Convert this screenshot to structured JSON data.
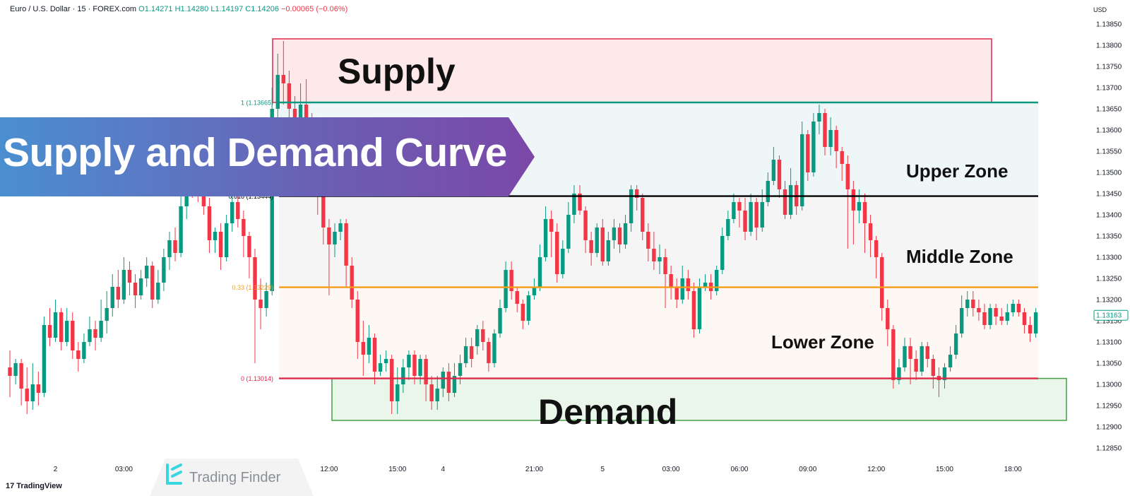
{
  "header": {
    "symbol": "Euro / U.S. Dollar · 15 · FOREX.com",
    "open": "O1.14271",
    "high": "H1.14280",
    "low": "L1.14197",
    "close": "C1.14206",
    "change": "−0.00065 (−0.06%)"
  },
  "banner": {
    "title": "Supply and Demand Curve"
  },
  "labels": {
    "supply": "Supply",
    "demand": "Demand",
    "upper": "Upper Zone",
    "middle": "Middle Zone",
    "lower": "Lower Zone"
  },
  "watermark": {
    "text": "Trading Finder"
  },
  "branding": {
    "tradingview": "TradingView",
    "tv_mark": "17"
  },
  "colors": {
    "bull": "#089981",
    "bear": "#f23645",
    "fib1": "#089981",
    "fib0618": "#000000",
    "fib033": "#f59c1a",
    "fib0": "#e0284a",
    "supply_border": "#e0284a",
    "supply_fill": "#fde8ea",
    "demand_border": "#43a047",
    "demand_fill": "#eaf6ea",
    "upper_fill": "#eef6f8",
    "middle_fill": "#f5f5f6",
    "lower_fill": "#fdf8f4"
  },
  "chart_data": {
    "type": "candlestick",
    "currency": "USD",
    "last_price": "1.13163",
    "ylim": [
      1.1282,
      1.1387
    ],
    "y_ticks": [
      "1.13850",
      "1.13800",
      "1.13750",
      "1.13700",
      "1.13650",
      "1.13600",
      "1.13550",
      "1.13500",
      "1.13450",
      "1.13400",
      "1.13350",
      "1.13300",
      "1.13250",
      "1.13200",
      "1.13150",
      "1.13100",
      "1.13050",
      "1.13000",
      "1.12950",
      "1.12900",
      "1.12850"
    ],
    "x_ticks": [
      {
        "label": "2",
        "index": 8
      },
      {
        "label": "03:00",
        "index": 20
      },
      {
        "label": "12:00",
        "index": 56
      },
      {
        "label": "15:00",
        "index": 68
      },
      {
        "label": "4",
        "index": 76
      },
      {
        "label": "21:00",
        "index": 92
      },
      {
        "label": "5",
        "index": 104
      },
      {
        "label": "03:00",
        "index": 116
      },
      {
        "label": "06:00",
        "index": 128
      },
      {
        "label": "09:00",
        "index": 140
      },
      {
        "label": "12:00",
        "index": 152
      },
      {
        "label": "15:00",
        "index": 164
      },
      {
        "label": "18:00",
        "index": 176
      }
    ],
    "fib_levels": [
      {
        "ratio": "1",
        "price": 1.13665,
        "label": "1 (1.13665)"
      },
      {
        "ratio": "0.618",
        "price": 1.13444,
        "label": "0.618 (1.13444)"
      },
      {
        "ratio": "0.33",
        "price": 1.13229,
        "label": "0.33 (1.13229)"
      },
      {
        "ratio": "0",
        "price": 1.13014,
        "label": "0 (1.13014)"
      }
    ],
    "zones": {
      "supply": {
        "top": 1.13815,
        "bottom": 1.13665,
        "from_index": 46,
        "to_index": 167
      },
      "demand": {
        "top": 1.13014,
        "bottom": 1.12915,
        "from_index": 56,
        "to_index": 180
      }
    },
    "candles": [
      [
        1.1304,
        1.1302,
        1.1308,
        1.1297
      ],
      [
        1.1302,
        1.1305,
        1.1306,
        1.13
      ],
      [
        1.1305,
        1.1299,
        1.1306,
        1.1295
      ],
      [
        1.1299,
        1.1296,
        1.1304,
        1.1293
      ],
      [
        1.1296,
        1.13,
        1.1305,
        1.1294
      ],
      [
        1.13,
        1.1298,
        1.1303,
        1.1295
      ],
      [
        1.1298,
        1.1314,
        1.1316,
        1.1297
      ],
      [
        1.1314,
        1.1311,
        1.1318,
        1.1309
      ],
      [
        1.1311,
        1.1317,
        1.132,
        1.131
      ],
      [
        1.1317,
        1.131,
        1.1318,
        1.1308
      ],
      [
        1.131,
        1.1315,
        1.1318,
        1.1309
      ],
      [
        1.1315,
        1.1308,
        1.1317,
        1.1306
      ],
      [
        1.1308,
        1.1306,
        1.131,
        1.1303
      ],
      [
        1.1306,
        1.131,
        1.1312,
        1.1305
      ],
      [
        1.131,
        1.1313,
        1.1316,
        1.1309
      ],
      [
        1.1313,
        1.1311,
        1.1315,
        1.1308
      ],
      [
        1.1311,
        1.1315,
        1.132,
        1.131
      ],
      [
        1.1315,
        1.1318,
        1.1322,
        1.1312
      ],
      [
        1.1318,
        1.1323,
        1.1326,
        1.1316
      ],
      [
        1.1323,
        1.132,
        1.1327,
        1.1318
      ],
      [
        1.132,
        1.1327,
        1.133,
        1.1319
      ],
      [
        1.1327,
        1.1324,
        1.1329,
        1.1321
      ],
      [
        1.1324,
        1.1321,
        1.1326,
        1.1318
      ],
      [
        1.1321,
        1.1325,
        1.1327,
        1.132
      ],
      [
        1.1325,
        1.1328,
        1.133,
        1.1323
      ],
      [
        1.1328,
        1.132,
        1.1329,
        1.1318
      ],
      [
        1.132,
        1.1324,
        1.1327,
        1.1319
      ],
      [
        1.1324,
        1.133,
        1.1332,
        1.1322
      ],
      [
        1.133,
        1.1334,
        1.1336,
        1.1327
      ],
      [
        1.1334,
        1.1331,
        1.1337,
        1.1329
      ],
      [
        1.1331,
        1.1342,
        1.1345,
        1.133
      ],
      [
        1.1342,
        1.135,
        1.1353,
        1.1339
      ],
      [
        1.135,
        1.1348,
        1.1352,
        1.1344
      ],
      [
        1.1348,
        1.1346,
        1.135,
        1.1343
      ],
      [
        1.1346,
        1.1342,
        1.1348,
        1.134
      ],
      [
        1.1342,
        1.1334,
        1.1344,
        1.1331
      ],
      [
        1.1334,
        1.1336,
        1.1337,
        1.1331
      ],
      [
        1.1336,
        1.133,
        1.1338,
        1.1327
      ],
      [
        1.133,
        1.1338,
        1.134,
        1.1329
      ],
      [
        1.1338,
        1.1343,
        1.1346,
        1.1336
      ],
      [
        1.1343,
        1.1339,
        1.1345,
        1.1337
      ],
      [
        1.1339,
        1.1335,
        1.1341,
        1.133
      ],
      [
        1.1335,
        1.133,
        1.1336,
        1.1325
      ],
      [
        1.133,
        1.132,
        1.1332,
        1.1305
      ],
      [
        1.132,
        1.1318,
        1.1325,
        1.1313
      ],
      [
        1.1318,
        1.1322,
        1.1324,
        1.1316
      ],
      [
        1.1322,
        1.1365,
        1.137,
        1.1321
      ],
      [
        1.1365,
        1.1373,
        1.1378,
        1.1362
      ],
      [
        1.1373,
        1.1371,
        1.1381,
        1.1366
      ],
      [
        1.1371,
        1.1365,
        1.1374,
        1.1362
      ],
      [
        1.1365,
        1.1362,
        1.1368,
        1.1358
      ],
      [
        1.1362,
        1.1366,
        1.1371,
        1.136
      ],
      [
        1.1366,
        1.136,
        1.1372,
        1.1357
      ],
      [
        1.136,
        1.1358,
        1.1364,
        1.1355
      ],
      [
        1.1358,
        1.1345,
        1.136,
        1.134
      ],
      [
        1.1345,
        1.1337,
        1.1347,
        1.1333
      ],
      [
        1.1337,
        1.1333,
        1.1339,
        1.1321
      ],
      [
        1.1333,
        1.1336,
        1.1338,
        1.133
      ],
      [
        1.1336,
        1.1338,
        1.1339,
        1.1334
      ],
      [
        1.1338,
        1.1328,
        1.1339,
        1.1323
      ],
      [
        1.1328,
        1.132,
        1.133,
        1.1318
      ],
      [
        1.132,
        1.131,
        1.1322,
        1.1306
      ],
      [
        1.131,
        1.1307,
        1.1315,
        1.1302
      ],
      [
        1.1307,
        1.1311,
        1.1314,
        1.1305
      ],
      [
        1.1311,
        1.1303,
        1.1312,
        1.13
      ],
      [
        1.1303,
        1.1305,
        1.1307,
        1.1302
      ],
      [
        1.1305,
        1.1306,
        1.1308,
        1.1303
      ],
      [
        1.1306,
        1.1296,
        1.1307,
        1.1293
      ],
      [
        1.1296,
        1.13,
        1.1304,
        1.1293
      ],
      [
        1.13,
        1.1304,
        1.1306,
        1.1298
      ],
      [
        1.1304,
        1.1307,
        1.1308,
        1.1301
      ],
      [
        1.1307,
        1.1302,
        1.1308,
        1.13
      ],
      [
        1.1302,
        1.1306,
        1.1307,
        1.13
      ],
      [
        1.1306,
        1.13,
        1.1307,
        1.1296
      ],
      [
        1.13,
        1.1296,
        1.1302,
        1.1294
      ],
      [
        1.1296,
        1.1299,
        1.1302,
        1.1294
      ],
      [
        1.1299,
        1.1303,
        1.1304,
        1.1297
      ],
      [
        1.1303,
        1.1298,
        1.1305,
        1.1296
      ],
      [
        1.1298,
        1.1302,
        1.1305,
        1.1297
      ],
      [
        1.1302,
        1.1305,
        1.1307,
        1.13
      ],
      [
        1.1305,
        1.1309,
        1.1311,
        1.1304
      ],
      [
        1.1309,
        1.1306,
        1.1311,
        1.1304
      ],
      [
        1.1309,
        1.1313,
        1.1314,
        1.1307
      ],
      [
        1.1313,
        1.131,
        1.1315,
        1.1308
      ],
      [
        1.131,
        1.1305,
        1.1311,
        1.1303
      ],
      [
        1.1305,
        1.1312,
        1.1313,
        1.1304
      ],
      [
        1.1312,
        1.1318,
        1.132,
        1.1311
      ],
      [
        1.1318,
        1.1327,
        1.1329,
        1.1317
      ],
      [
        1.1327,
        1.1322,
        1.1329,
        1.132
      ],
      [
        1.1322,
        1.1319,
        1.1323,
        1.1317
      ],
      [
        1.1319,
        1.1315,
        1.132,
        1.1313
      ],
      [
        1.1315,
        1.1321,
        1.1322,
        1.1314
      ],
      [
        1.1321,
        1.1323,
        1.1325,
        1.132
      ],
      [
        1.1323,
        1.133,
        1.1333,
        1.1322
      ],
      [
        1.133,
        1.1339,
        1.1342,
        1.1329
      ],
      [
        1.1339,
        1.1336,
        1.1341,
        1.133
      ],
      [
        1.1336,
        1.1326,
        1.1338,
        1.1324
      ],
      [
        1.1326,
        1.1332,
        1.1334,
        1.1325
      ],
      [
        1.1332,
        1.134,
        1.1343,
        1.1331
      ],
      [
        1.134,
        1.1345,
        1.1347,
        1.1338
      ],
      [
        1.1345,
        1.1341,
        1.1347,
        1.134
      ],
      [
        1.1341,
        1.1334,
        1.1342,
        1.1331
      ],
      [
        1.1334,
        1.1331,
        1.1336,
        1.1328
      ],
      [
        1.1331,
        1.1337,
        1.1338,
        1.133
      ],
      [
        1.1337,
        1.1329,
        1.1339,
        1.1328
      ],
      [
        1.1329,
        1.1334,
        1.1336,
        1.1328
      ],
      [
        1.1334,
        1.1337,
        1.1339,
        1.1332
      ],
      [
        1.1337,
        1.1333,
        1.1338,
        1.1331
      ],
      [
        1.1333,
        1.1338,
        1.134,
        1.1332
      ],
      [
        1.1338,
        1.1346,
        1.1347,
        1.1336
      ],
      [
        1.1346,
        1.1344,
        1.1347,
        1.1341
      ],
      [
        1.1344,
        1.1336,
        1.1345,
        1.1334
      ],
      [
        1.1336,
        1.1332,
        1.1338,
        1.1329
      ],
      [
        1.1332,
        1.1329,
        1.1336,
        1.1327
      ],
      [
        1.1329,
        1.133,
        1.1333,
        1.1326
      ],
      [
        1.133,
        1.1326,
        1.1332,
        1.1318
      ],
      [
        1.1326,
        1.1323,
        1.1328,
        1.132
      ],
      [
        1.1323,
        1.132,
        1.1325,
        1.1318
      ],
      [
        1.132,
        1.1325,
        1.1328,
        1.1319
      ],
      [
        1.1325,
        1.1322,
        1.1327,
        1.132
      ],
      [
        1.1322,
        1.1313,
        1.1324,
        1.1311
      ],
      [
        1.1313,
        1.1323,
        1.1325,
        1.1312
      ],
      [
        1.1323,
        1.1324,
        1.1326,
        1.1322
      ],
      [
        1.1324,
        1.1322,
        1.1326,
        1.132
      ],
      [
        1.1322,
        1.1327,
        1.1328,
        1.1321
      ],
      [
        1.1327,
        1.1335,
        1.1337,
        1.1326
      ],
      [
        1.1335,
        1.1339,
        1.1341,
        1.1334
      ],
      [
        1.1339,
        1.1343,
        1.1345,
        1.1338
      ],
      [
        1.1343,
        1.1341,
        1.1344,
        1.1337
      ],
      [
        1.1341,
        1.1336,
        1.1344,
        1.1334
      ],
      [
        1.1336,
        1.1343,
        1.1345,
        1.1335
      ],
      [
        1.1343,
        1.1337,
        1.1344,
        1.1334
      ],
      [
        1.1337,
        1.1343,
        1.1346,
        1.1336
      ],
      [
        1.1343,
        1.1348,
        1.135,
        1.1342
      ],
      [
        1.1348,
        1.1353,
        1.1356,
        1.1347
      ],
      [
        1.1353,
        1.1346,
        1.1354,
        1.1344
      ],
      [
        1.1346,
        1.134,
        1.1348,
        1.1339
      ],
      [
        1.134,
        1.1347,
        1.1351,
        1.1339
      ],
      [
        1.1347,
        1.1342,
        1.1348,
        1.134
      ],
      [
        1.1342,
        1.1359,
        1.1362,
        1.1341
      ],
      [
        1.1359,
        1.135,
        1.136,
        1.1348
      ],
      [
        1.135,
        1.1362,
        1.1364,
        1.1349
      ],
      [
        1.1362,
        1.1364,
        1.1366,
        1.1359
      ],
      [
        1.1364,
        1.1356,
        1.1365,
        1.1354
      ],
      [
        1.1356,
        1.136,
        1.1363,
        1.1354
      ],
      [
        1.136,
        1.1355,
        1.1361,
        1.1351
      ],
      [
        1.1355,
        1.1352,
        1.1356,
        1.1348
      ],
      [
        1.1352,
        1.1346,
        1.1354,
        1.1332
      ],
      [
        1.1346,
        1.1341,
        1.1348,
        1.1333
      ],
      [
        1.1341,
        1.1343,
        1.1346,
        1.1338
      ],
      [
        1.1343,
        1.1338,
        1.1345,
        1.1331
      ],
      [
        1.1338,
        1.1334,
        1.134,
        1.133
      ],
      [
        1.1334,
        1.133,
        1.1335,
        1.1325
      ],
      [
        1.133,
        1.1318,
        1.1331,
        1.1315
      ],
      [
        1.1318,
        1.1313,
        1.132,
        1.1309
      ],
      [
        1.1313,
        1.1301,
        1.1314,
        1.1299
      ],
      [
        1.1301,
        1.1304,
        1.1306,
        1.13
      ],
      [
        1.1304,
        1.1309,
        1.1311,
        1.1303
      ],
      [
        1.1309,
        1.1306,
        1.1311,
        1.13
      ],
      [
        1.1306,
        1.1303,
        1.1308,
        1.1301
      ],
      [
        1.1303,
        1.1309,
        1.131,
        1.1302
      ],
      [
        1.1309,
        1.1306,
        1.131,
        1.1304
      ],
      [
        1.1306,
        1.1302,
        1.1307,
        1.1299
      ],
      [
        1.1302,
        1.1301,
        1.1304,
        1.1297
      ],
      [
        1.1301,
        1.1304,
        1.1305,
        1.1299
      ],
      [
        1.1304,
        1.1307,
        1.1309,
        1.1303
      ],
      [
        1.1307,
        1.1312,
        1.1314,
        1.1306
      ],
      [
        1.1312,
        1.1318,
        1.1321,
        1.1311
      ],
      [
        1.1318,
        1.132,
        1.1322,
        1.1316
      ],
      [
        1.132,
        1.1318,
        1.1322,
        1.1316
      ],
      [
        1.1318,
        1.1317,
        1.132,
        1.1315
      ],
      [
        1.1317,
        1.1314,
        1.1319,
        1.1313
      ],
      [
        1.1314,
        1.1318,
        1.1319,
        1.1313
      ],
      [
        1.1318,
        1.1316,
        1.1319,
        1.1314
      ],
      [
        1.1316,
        1.1315,
        1.1318,
        1.1314
      ],
      [
        1.1315,
        1.1317,
        1.1319,
        1.1314
      ],
      [
        1.1317,
        1.1319,
        1.132,
        1.1316
      ],
      [
        1.1319,
        1.1317,
        1.132,
        1.1316
      ],
      [
        1.1317,
        1.1314,
        1.1318,
        1.1312
      ],
      [
        1.1314,
        1.1312,
        1.1316,
        1.131
      ],
      [
        1.1312,
        1.1317,
        1.1318,
        1.1311
      ]
    ]
  }
}
